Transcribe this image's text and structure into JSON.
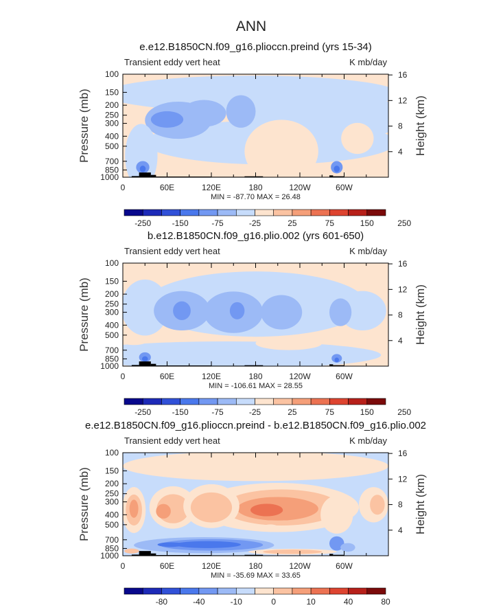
{
  "figure": {
    "title": "ANN"
  },
  "colors": {
    "palette": [
      "#08088c",
      "#1d2ab8",
      "#3151d8",
      "#4a78ec",
      "#7298f2",
      "#9cbaf6",
      "#c7dcfb",
      "#fde4cf",
      "#fbc3a2",
      "#f59f79",
      "#ec7252",
      "#de4430",
      "#b7201a",
      "#7b0a0a"
    ],
    "land": "#000000",
    "frame": "#000000"
  },
  "chart_data": [
    {
      "type": "heatmap",
      "title": "e.e12.B1850CN.f09_g16.plioccn.preind (yrs 15-34)",
      "left_label": "Transient eddy vert heat",
      "right_label": "K mb/day",
      "ylabel": "Pressure (mb)",
      "ylabel_right": "Height (km)",
      "xticks": [
        "0",
        "60E",
        "120E",
        "180",
        "120W",
        "60W"
      ],
      "yticks": [
        "100",
        "150",
        "200",
        "250",
        "300",
        "400",
        "500",
        "700",
        "850",
        "1000"
      ],
      "yticks_right": [
        "16",
        "12",
        "8",
        "4"
      ],
      "stats": "MIN = -87.70   MAX =  26.48",
      "colorbar_labels": [
        "-250",
        "-150",
        "-75",
        "-25",
        "25",
        "75",
        "150",
        "250"
      ],
      "background_level": 7,
      "blobs": [
        {
          "lon": 175,
          "lev": 155,
          "rlon": 200,
          "rlev": 70,
          "level": 6
        },
        {
          "lon": 275,
          "lev": 260,
          "rlon": 105,
          "rlev": 135,
          "level": 6
        },
        {
          "lon": 200,
          "lev": 460,
          "rlon": 170,
          "rlev": 210,
          "level": 6
        },
        {
          "lon": 75,
          "lev": 280,
          "rlon": 45,
          "rlev": 110,
          "level": 5
        },
        {
          "lon": 110,
          "lev": 240,
          "rlon": 30,
          "rlev": 70,
          "level": 5
        },
        {
          "lon": 160,
          "lev": 230,
          "rlon": 20,
          "rlev": 80,
          "level": 5
        },
        {
          "lon": 60,
          "lev": 275,
          "rlon": 22,
          "rlev": 50,
          "level": 4
        },
        {
          "lon": 25,
          "lev": 620,
          "rlon": 22,
          "rlev": 380,
          "level": 6
        },
        {
          "lon": 27,
          "lev": 800,
          "rlon": 9,
          "rlev": 110,
          "level": 4
        },
        {
          "lon": 27,
          "lev": 830,
          "rlon": 4,
          "rlev": 60,
          "level": 3
        },
        {
          "lon": 290,
          "lev": 800,
          "rlon": 8,
          "rlev": 110,
          "level": 4
        },
        {
          "lon": 290,
          "lev": 830,
          "rlon": 4,
          "rlev": 60,
          "level": 3
        },
        {
          "lon": 215,
          "lev": 560,
          "rlon": 50,
          "rlev": 340,
          "level": 7
        },
        {
          "lon": 318,
          "lev": 420,
          "rlon": 22,
          "rlev": 140,
          "level": 7
        }
      ],
      "land": [
        [
          12,
          22,
          975
        ],
        [
          22,
          38,
          900
        ],
        [
          38,
          45,
          950
        ],
        [
          45,
          120,
          985
        ],
        [
          120,
          165,
          990
        ],
        [
          165,
          190,
          980
        ],
        [
          280,
          285,
          960
        ],
        [
          285,
          300,
          980
        ]
      ]
    },
    {
      "type": "heatmap",
      "title": "b.e12.B1850CN.f09_g16.plio.002 (yrs 601-650)",
      "left_label": "Transient eddy vert heat",
      "right_label": "K mb/day",
      "ylabel": "Pressure (mb)",
      "ylabel_right": "Height (km)",
      "xticks": [
        "0",
        "60E",
        "120E",
        "180",
        "120W",
        "60W"
      ],
      "yticks": [
        "100",
        "150",
        "200",
        "250",
        "300",
        "400",
        "500",
        "700",
        "850",
        "1000"
      ],
      "yticks_right": [
        "16",
        "12",
        "8",
        "4"
      ],
      "stats": "MIN = -106.61   MAX =  28.55",
      "colorbar_labels": [
        "-250",
        "-150",
        "-75",
        "-25",
        "25",
        "75",
        "150",
        "250"
      ],
      "background_level": 7,
      "blobs": [
        {
          "lon": 180,
          "lev": 250,
          "rlon": 150,
          "rlev": 180,
          "level": 6
        },
        {
          "lon": 30,
          "lev": 270,
          "rlon": 32,
          "rlev": 150,
          "level": 6
        },
        {
          "lon": 325,
          "lev": 290,
          "rlon": 32,
          "rlev": 120,
          "level": 6
        },
        {
          "lon": 80,
          "lev": 290,
          "rlon": 38,
          "rlev": 120,
          "level": 5
        },
        {
          "lon": 150,
          "lev": 300,
          "rlon": 40,
          "rlev": 130,
          "level": 5
        },
        {
          "lon": 215,
          "lev": 300,
          "rlon": 28,
          "rlev": 110,
          "level": 5
        },
        {
          "lon": 295,
          "lev": 300,
          "rlon": 15,
          "rlev": 90,
          "level": 5
        },
        {
          "lon": 80,
          "lev": 290,
          "rlon": 12,
          "rlev": 60,
          "level": 4
        },
        {
          "lon": 155,
          "lev": 290,
          "rlon": 10,
          "rlev": 55,
          "level": 4
        },
        {
          "lon": 140,
          "lev": 780,
          "rlon": 210,
          "rlev": 230,
          "level": 6
        },
        {
          "lon": 225,
          "lev": 600,
          "rlon": 45,
          "rlev": 90,
          "level": 7
        },
        {
          "lon": 15,
          "lev": 560,
          "rlon": 20,
          "rlev": 60,
          "level": 7
        },
        {
          "lon": 30,
          "lev": 820,
          "rlon": 8,
          "rlev": 90,
          "level": 4
        },
        {
          "lon": 30,
          "lev": 850,
          "rlon": 4,
          "rlev": 50,
          "level": 3
        },
        {
          "lon": 290,
          "lev": 840,
          "rlon": 7,
          "rlev": 80,
          "level": 4
        },
        {
          "lon": 290,
          "lev": 870,
          "rlon": 3,
          "rlev": 45,
          "level": 3
        }
      ],
      "land": [
        [
          12,
          22,
          975
        ],
        [
          22,
          38,
          900
        ],
        [
          38,
          45,
          950
        ],
        [
          45,
          120,
          985
        ],
        [
          120,
          165,
          990
        ],
        [
          165,
          190,
          980
        ],
        [
          280,
          285,
          960
        ],
        [
          285,
          300,
          980
        ]
      ]
    },
    {
      "type": "heatmap",
      "title": "e.e12.B1850CN.f09_g16.plioccn.preind - b.e12.B1850CN.f09_g16.plio.002",
      "left_label": "Transient eddy vert heat",
      "right_label": "K mb/day",
      "ylabel": "Pressure (mb)",
      "ylabel_right": "Height (km)",
      "xticks": [
        "0",
        "60E",
        "120E",
        "180",
        "120W",
        "60W"
      ],
      "yticks": [
        "100",
        "150",
        "200",
        "250",
        "300",
        "400",
        "500",
        "700",
        "850",
        "1000"
      ],
      "yticks_right": [
        "16",
        "12",
        "8",
        "4"
      ],
      "stats": "MIN = -35.69   MAX =  33.65",
      "colorbar_labels": [
        "-80",
        "-40",
        "-10",
        "0",
        "10",
        "40",
        "80"
      ],
      "background_level": 6,
      "blobs": [
        {
          "lon": 180,
          "lev": 135,
          "rlon": 180,
          "rlev": 60,
          "level": 7
        },
        {
          "lon": 210,
          "lev": 340,
          "rlon": 110,
          "rlev": 170,
          "level": 7
        },
        {
          "lon": 215,
          "lev": 340,
          "rlon": 80,
          "rlev": 130,
          "level": 8
        },
        {
          "lon": 210,
          "lev": 350,
          "rlon": 55,
          "rlev": 90,
          "level": 9
        },
        {
          "lon": 195,
          "lev": 360,
          "rlon": 22,
          "rlev": 50,
          "level": 10
        },
        {
          "lon": 15,
          "lev": 360,
          "rlon": 16,
          "rlev": 170,
          "level": 7
        },
        {
          "lon": 15,
          "lev": 360,
          "rlon": 11,
          "rlev": 120,
          "level": 8
        },
        {
          "lon": 15,
          "lev": 350,
          "rlon": 6,
          "rlev": 70,
          "level": 9
        },
        {
          "lon": 68,
          "lev": 340,
          "rlon": 32,
          "rlev": 150,
          "level": 7
        },
        {
          "lon": 68,
          "lev": 350,
          "rlon": 22,
          "rlev": 110,
          "level": 8
        },
        {
          "lon": 55,
          "lev": 370,
          "rlon": 10,
          "rlev": 60,
          "level": 9
        },
        {
          "lon": 120,
          "lev": 330,
          "rlon": 38,
          "rlev": 150,
          "level": 7
        },
        {
          "lon": 120,
          "lev": 340,
          "rlon": 28,
          "rlev": 110,
          "level": 8
        },
        {
          "lon": 340,
          "lev": 320,
          "rlon": 20,
          "rlev": 120,
          "level": 7
        },
        {
          "lon": 345,
          "lev": 320,
          "rlon": 10,
          "rlev": 70,
          "level": 8
        },
        {
          "lon": 290,
          "lev": 400,
          "rlon": 22,
          "rlev": 160,
          "level": 7
        },
        {
          "lon": 110,
          "lev": 790,
          "rlon": 95,
          "rlev": 140,
          "level": 5
        },
        {
          "lon": 120,
          "lev": 785,
          "rlon": 70,
          "rlev": 100,
          "level": 4
        },
        {
          "lon": 115,
          "lev": 780,
          "rlon": 45,
          "rlev": 60,
          "level": 3
        },
        {
          "lon": 65,
          "lev": 780,
          "rlon": 18,
          "rlev": 40,
          "level": 3
        },
        {
          "lon": 200,
          "lev": 540,
          "rlon": 12,
          "rlev": 45,
          "level": 7
        },
        {
          "lon": 230,
          "lev": 915,
          "rlon": 60,
          "rlev": 60,
          "level": 7
        },
        {
          "lon": 230,
          "lev": 915,
          "rlon": 40,
          "rlev": 45,
          "level": 8
        },
        {
          "lon": 290,
          "lev": 760,
          "rlon": 10,
          "rlev": 120,
          "level": 4
        },
        {
          "lon": 12,
          "lev": 900,
          "rlon": 10,
          "rlev": 50,
          "level": 8
        },
        {
          "lon": 305,
          "lev": 830,
          "rlon": 10,
          "rlev": 80,
          "level": 5
        }
      ],
      "land": [
        [
          12,
          22,
          975
        ],
        [
          22,
          38,
          900
        ],
        [
          38,
          45,
          950
        ],
        [
          45,
          120,
          985
        ],
        [
          120,
          165,
          990
        ],
        [
          165,
          190,
          980
        ],
        [
          280,
          285,
          960
        ],
        [
          285,
          300,
          980
        ]
      ]
    }
  ]
}
